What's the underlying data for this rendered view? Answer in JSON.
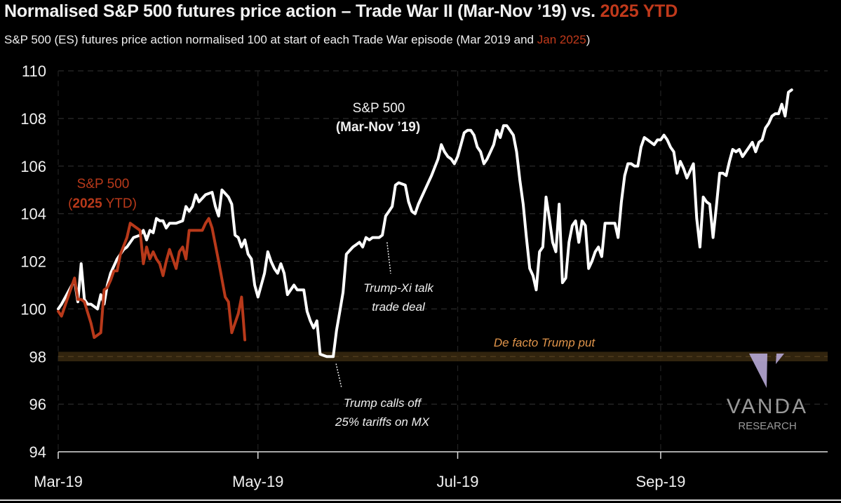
{
  "header": {
    "title_main": "Normalised S&P 500 futures price action – Trade War II (Mar-Nov ’19) vs. ",
    "title_highlight": "2025 YTD",
    "subtitle_main": "S&P 500 (ES) futures price action normalised 100 at start of each Trade War episode (Mar 2019 and ",
    "subtitle_highlight": "Jan 2025",
    "subtitle_end": ")"
  },
  "colors": {
    "background": "#000000",
    "series_2019": "#ffffff",
    "series_2025": "#b8391a",
    "put_band": "#3a2a10",
    "put_label": "#e0944a",
    "logo": "#b7a9d6"
  },
  "chart_data": {
    "type": "line",
    "title": "Normalised S&P 500 futures price action – Trade War II (Mar-Nov ’19) vs. 2025 YTD",
    "subtitle": "S&P 500 (ES) futures price action normalised 100 at start of each Trade War episode (Mar 2019 and Jan 2025)",
    "xlabel": "",
    "ylabel": "",
    "x_unit": "days since 1 Mar 2019",
    "x_ticks": [
      {
        "label": "Mar-19",
        "day": 0
      },
      {
        "label": "May-19",
        "day": 61
      },
      {
        "label": "Jul-19",
        "day": 122
      },
      {
        "label": "Sep-19",
        "day": 184
      }
    ],
    "xlim": [
      0,
      235
    ],
    "ylim": [
      94,
      110
    ],
    "y_ticks": [
      94,
      96,
      98,
      100,
      102,
      104,
      106,
      108,
      110
    ],
    "grid": true,
    "legend": "inline-labels",
    "series": [
      {
        "name": "S&P 500 (Mar-Nov ’19)",
        "label_line1": "S&P 500",
        "label_line2": "(Mar-Nov ’19)",
        "color": "#ffffff",
        "points": [
          [
            0,
            100.0
          ],
          [
            1,
            100.2
          ],
          [
            3,
            100.7
          ],
          [
            5,
            101.2
          ],
          [
            6,
            100.3
          ],
          [
            7,
            101.9
          ],
          [
            8,
            100.4
          ],
          [
            9,
            100.2
          ],
          [
            10,
            100.2
          ],
          [
            12,
            100.0
          ],
          [
            13,
            100.6
          ],
          [
            14,
            100.2
          ],
          [
            15,
            101.0
          ],
          [
            16,
            101.5
          ],
          [
            18,
            102.1
          ],
          [
            20,
            102.5
          ],
          [
            21,
            102.6
          ],
          [
            23,
            103.0
          ],
          [
            25,
            103.1
          ],
          [
            26,
            103.3
          ],
          [
            27,
            102.9
          ],
          [
            28,
            103.3
          ],
          [
            29,
            103.2
          ],
          [
            30,
            103.8
          ],
          [
            31,
            103.7
          ],
          [
            32,
            103.7
          ],
          [
            33,
            103.4
          ],
          [
            34,
            103.6
          ],
          [
            36,
            103.6
          ],
          [
            38,
            103.7
          ],
          [
            39,
            104.3
          ],
          [
            40,
            104.1
          ],
          [
            41,
            104.3
          ],
          [
            42,
            104.8
          ],
          [
            43,
            104.5
          ],
          [
            45,
            104.8
          ],
          [
            47,
            104.9
          ],
          [
            48,
            104.3
          ],
          [
            49,
            103.9
          ],
          [
            50,
            105.0
          ],
          [
            52,
            104.7
          ],
          [
            53,
            104.4
          ],
          [
            54,
            103.1
          ],
          [
            55,
            103.0
          ],
          [
            56,
            102.6
          ],
          [
            57,
            102.9
          ],
          [
            58,
            102.3
          ],
          [
            59,
            102.1
          ],
          [
            60,
            101.0
          ],
          [
            61,
            100.5
          ],
          [
            63,
            101.5
          ],
          [
            64,
            102.4
          ],
          [
            65,
            102.0
          ],
          [
            66,
            101.7
          ],
          [
            67,
            101.5
          ],
          [
            68,
            101.9
          ],
          [
            69,
            101.5
          ],
          [
            70,
            100.6
          ],
          [
            71,
            100.8
          ],
          [
            72,
            101.0
          ],
          [
            73,
            100.8
          ],
          [
            74,
            100.8
          ],
          [
            75,
            100.8
          ],
          [
            76,
            99.9
          ],
          [
            77,
            99.5
          ],
          [
            78,
            99.2
          ],
          [
            79,
            99.5
          ],
          [
            80,
            98.1
          ],
          [
            82,
            98.0
          ],
          [
            84,
            98.0
          ],
          [
            85,
            99.1
          ],
          [
            86,
            99.9
          ],
          [
            87,
            100.7
          ],
          [
            88,
            102.3
          ],
          [
            90,
            102.6
          ],
          [
            92,
            102.8
          ],
          [
            93,
            102.6
          ],
          [
            94,
            103.0
          ],
          [
            95,
            102.9
          ],
          [
            96,
            103.0
          ],
          [
            98,
            103.0
          ],
          [
            99,
            103.1
          ],
          [
            100,
            103.9
          ],
          [
            101,
            104.1
          ],
          [
            102,
            104.3
          ],
          [
            103,
            105.2
          ],
          [
            104,
            105.3
          ],
          [
            106,
            105.2
          ],
          [
            107,
            104.5
          ],
          [
            108,
            104.1
          ],
          [
            109,
            104.0
          ],
          [
            110,
            104.4
          ],
          [
            112,
            105.0
          ],
          [
            114,
            105.6
          ],
          [
            116,
            106.3
          ],
          [
            117,
            106.9
          ],
          [
            118,
            106.6
          ],
          [
            119,
            106.4
          ],
          [
            120,
            106.3
          ],
          [
            121,
            106.1
          ],
          [
            122,
            106.4
          ],
          [
            123,
            106.9
          ],
          [
            124,
            107.4
          ],
          [
            125,
            107.5
          ],
          [
            126,
            107.5
          ],
          [
            127,
            107.3
          ],
          [
            128,
            106.8
          ],
          [
            129,
            106.6
          ],
          [
            130,
            106.1
          ],
          [
            131,
            106.3
          ],
          [
            132,
            106.6
          ],
          [
            133,
            106.9
          ],
          [
            134,
            107.5
          ],
          [
            135,
            107.2
          ],
          [
            136,
            107.7
          ],
          [
            137,
            107.7
          ],
          [
            138,
            107.5
          ],
          [
            139,
            107.3
          ],
          [
            140,
            106.6
          ],
          [
            141,
            105.4
          ],
          [
            142,
            104.4
          ],
          [
            143,
            103.0
          ],
          [
            144,
            101.7
          ],
          [
            145,
            101.4
          ],
          [
            146,
            100.8
          ],
          [
            147,
            102.4
          ],
          [
            148,
            102.6
          ],
          [
            149,
            104.7
          ],
          [
            150,
            103.8
          ],
          [
            151,
            102.8
          ],
          [
            152,
            102.4
          ],
          [
            153,
            104.4
          ],
          [
            154,
            101.1
          ],
          [
            155,
            101.3
          ],
          [
            156,
            102.8
          ],
          [
            157,
            103.5
          ],
          [
            158,
            103.7
          ],
          [
            159,
            102.8
          ],
          [
            160,
            103.7
          ],
          [
            161,
            103.5
          ],
          [
            162,
            101.7
          ],
          [
            163,
            102.0
          ],
          [
            164,
            102.4
          ],
          [
            165,
            102.6
          ],
          [
            166,
            102.2
          ],
          [
            167,
            103.6
          ],
          [
            168,
            103.6
          ],
          [
            169,
            103.6
          ],
          [
            170,
            103.6
          ],
          [
            171,
            103.0
          ],
          [
            172,
            104.5
          ],
          [
            173,
            105.6
          ],
          [
            174,
            106.1
          ],
          [
            175,
            106.1
          ],
          [
            176,
            106.0
          ],
          [
            177,
            106.0
          ],
          [
            178,
            106.8
          ],
          [
            179,
            107.2
          ],
          [
            180,
            107.1
          ],
          [
            181,
            107.0
          ],
          [
            182,
            106.9
          ],
          [
            183,
            107.1
          ],
          [
            184,
            107.1
          ],
          [
            185,
            107.3
          ],
          [
            186,
            107.1
          ],
          [
            187,
            106.8
          ],
          [
            188,
            106.6
          ],
          [
            189,
            105.7
          ],
          [
            190,
            106.2
          ],
          [
            191,
            105.9
          ],
          [
            192,
            105.5
          ],
          [
            193,
            105.8
          ],
          [
            194,
            106.1
          ],
          [
            195,
            103.8
          ],
          [
            196,
            102.6
          ],
          [
            197,
            104.7
          ],
          [
            198,
            104.5
          ],
          [
            199,
            104.4
          ],
          [
            200,
            103.0
          ],
          [
            201,
            104.3
          ],
          [
            202,
            105.7
          ],
          [
            203,
            105.7
          ],
          [
            204,
            105.6
          ],
          [
            205,
            106.2
          ],
          [
            206,
            106.7
          ],
          [
            207,
            106.6
          ],
          [
            208,
            106.7
          ],
          [
            209,
            106.4
          ],
          [
            210,
            106.6
          ],
          [
            211,
            106.8
          ],
          [
            212,
            107.0
          ],
          [
            213,
            106.6
          ],
          [
            214,
            107.0
          ],
          [
            215,
            107.1
          ],
          [
            216,
            107.6
          ],
          [
            217,
            107.8
          ],
          [
            218,
            108.1
          ],
          [
            219,
            108.2
          ],
          [
            220,
            108.2
          ],
          [
            221,
            108.6
          ],
          [
            222,
            108.1
          ],
          [
            223,
            109.1
          ],
          [
            224,
            109.2
          ]
        ]
      },
      {
        "name": "S&P 500 (2025 YTD)",
        "label_line1": "S&P 500",
        "label_line2_bold": "2025",
        "label_line2_rest": " YTD)",
        "color": "#b8391a",
        "points": [
          [
            0,
            99.9
          ],
          [
            1,
            99.7
          ],
          [
            3,
            100.5
          ],
          [
            5,
            101.3
          ],
          [
            6,
            100.4
          ],
          [
            7,
            100.4
          ],
          [
            8,
            100.3
          ],
          [
            10,
            99.4
          ],
          [
            11,
            98.8
          ],
          [
            13,
            99.0
          ],
          [
            14,
            100.8
          ],
          [
            15,
            100.9
          ],
          [
            16,
            101.2
          ],
          [
            17,
            101.6
          ],
          [
            18,
            101.6
          ],
          [
            19,
            102.3
          ],
          [
            21,
            103.0
          ],
          [
            22,
            103.6
          ],
          [
            24,
            103.4
          ],
          [
            25,
            103.3
          ],
          [
            26,
            101.9
          ],
          [
            27,
            102.6
          ],
          [
            28,
            102.1
          ],
          [
            29,
            102.4
          ],
          [
            30,
            102.1
          ],
          [
            31,
            101.9
          ],
          [
            32,
            101.4
          ],
          [
            33,
            102.0
          ],
          [
            34,
            102.5
          ],
          [
            35,
            102.1
          ],
          [
            36,
            101.7
          ],
          [
            37,
            102.4
          ],
          [
            38,
            102.6
          ],
          [
            39,
            102.1
          ],
          [
            40,
            103.3
          ],
          [
            42,
            103.3
          ],
          [
            43,
            103.3
          ],
          [
            44,
            103.3
          ],
          [
            45,
            103.6
          ],
          [
            46,
            103.8
          ],
          [
            47,
            103.4
          ],
          [
            49,
            102.0
          ],
          [
            51,
            100.5
          ],
          [
            52,
            100.3
          ],
          [
            53,
            99.0
          ],
          [
            55,
            99.8
          ],
          [
            56,
            100.5
          ],
          [
            57,
            98.7
          ]
        ]
      }
    ],
    "reference_band": {
      "label": "De facto Trump put",
      "y_from": 97.8,
      "y_to": 98.2
    },
    "annotations": [
      {
        "text_line1": "Trump-Xi talk",
        "text_line2": "trade deal",
        "target_day": 100,
        "target_y": 103.0
      },
      {
        "text_line1": "Trump calls off",
        "text_line2": "25% tariffs on MX",
        "target_day": 84,
        "target_y": 97.9
      }
    ]
  },
  "logo": {
    "name": "VANDA",
    "sub": "RESEARCH"
  }
}
